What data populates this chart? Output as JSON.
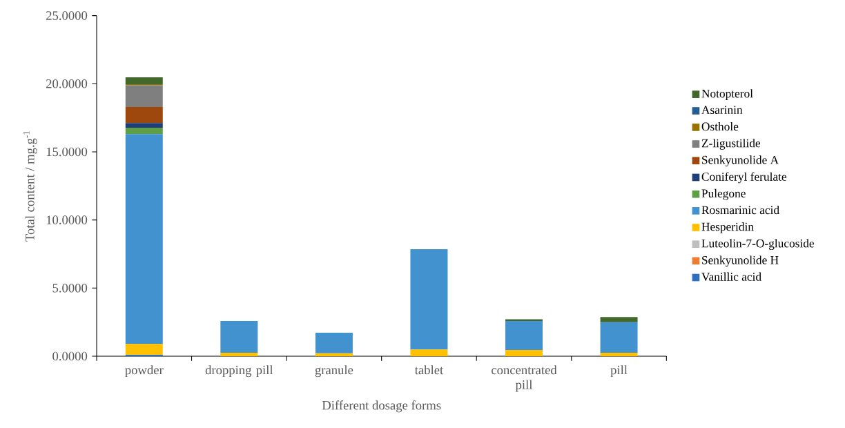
{
  "chart_data": {
    "type": "bar",
    "stacked": true,
    "xlabel": "Different dosage forms",
    "ylabel": "Total content / mg.g$^{-1}$",
    "categories": [
      "powder",
      "dropping pill",
      "granule",
      "tablet",
      "concentrated pill",
      "pill"
    ],
    "ylim": [
      0,
      25
    ],
    "yticks": [
      {
        "value": 0,
        "label": "0.0000"
      },
      {
        "value": 5,
        "label": "5.0000"
      },
      {
        "value": 10,
        "label": "10.0000"
      },
      {
        "value": 15,
        "label": "15.0000"
      },
      {
        "value": 20,
        "label": "20.0000"
      },
      {
        "value": 25,
        "label": "25.0000"
      }
    ],
    "legend": "right",
    "grid": false,
    "series": [
      {
        "name": "Vanillic acid",
        "color": "#2e6fc0",
        "values": [
          0.1,
          0,
          0,
          0,
          0,
          0
        ]
      },
      {
        "name": "Senkyunolide H",
        "color": "#ed7d31",
        "values": [
          null,
          0,
          0,
          0,
          0,
          0
        ]
      },
      {
        "name": "Luteolin-7-O-glucoside",
        "color": "#bfbfbf",
        "values": [
          null,
          0,
          0,
          0,
          0,
          0
        ]
      },
      {
        "name": "Hesperidin",
        "color": "#ffc000",
        "values": [
          0.8,
          0.25,
          0.22,
          0.49,
          0.46,
          0.25
        ]
      },
      {
        "name": "Rosmarinic acid",
        "color": "#4292d0",
        "values": [
          15.4,
          2.34,
          1.5,
          7.37,
          2.13,
          2.25
        ]
      },
      {
        "name": "Pulegone",
        "color": "#5fa046",
        "values": [
          0.47,
          0,
          0,
          0,
          0,
          0
        ]
      },
      {
        "name": "Coniferyl ferulate",
        "color": "#1f3f7a",
        "values": [
          0.34,
          0,
          0,
          0,
          0,
          0
        ]
      },
      {
        "name": "Senkyunolide A",
        "color": "#9e480e",
        "values": [
          1.18,
          0,
          0,
          0,
          0,
          0
        ]
      },
      {
        "name": "Z-ligustilide",
        "color": "#7f7f7f",
        "values": [
          1.6,
          0,
          0,
          0,
          0,
          0
        ]
      },
      {
        "name": "Osthole",
        "color": "#997300",
        "values": [
          0.08,
          0,
          0,
          0,
          0,
          0
        ]
      },
      {
        "name": "Asarinin",
        "color": "#255e91",
        "values": [
          null,
          0,
          0,
          0,
          0,
          0
        ]
      },
      {
        "name": "Notopterol",
        "color": "#43682b",
        "values": [
          0.5,
          0,
          0,
          0,
          0.12,
          0.37
        ]
      }
    ]
  }
}
